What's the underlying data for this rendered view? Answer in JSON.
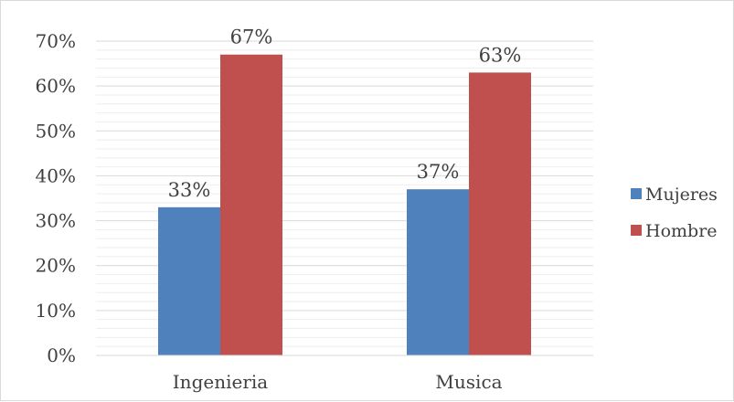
{
  "chart_data": {
    "type": "bar",
    "categories": [
      "Ingenieria",
      "Musica"
    ],
    "series": [
      {
        "name": "Mujeres",
        "values": [
          33,
          37
        ],
        "data_labels": [
          "33%",
          "37%"
        ],
        "color": "#4f81bd"
      },
      {
        "name": "Hombre",
        "values": [
          67,
          63
        ],
        "data_labels": [
          "67%",
          "63%"
        ],
        "color": "#c0504d"
      }
    ],
    "yticks": [
      "0%",
      "10%",
      "20%",
      "30%",
      "40%",
      "50%",
      "60%",
      "70%"
    ],
    "ylim": [
      0,
      70
    ],
    "value_unit": "%",
    "grid": true,
    "minor_grid": true,
    "legend_position": "right",
    "title": "",
    "xlabel": "",
    "ylabel": ""
  }
}
